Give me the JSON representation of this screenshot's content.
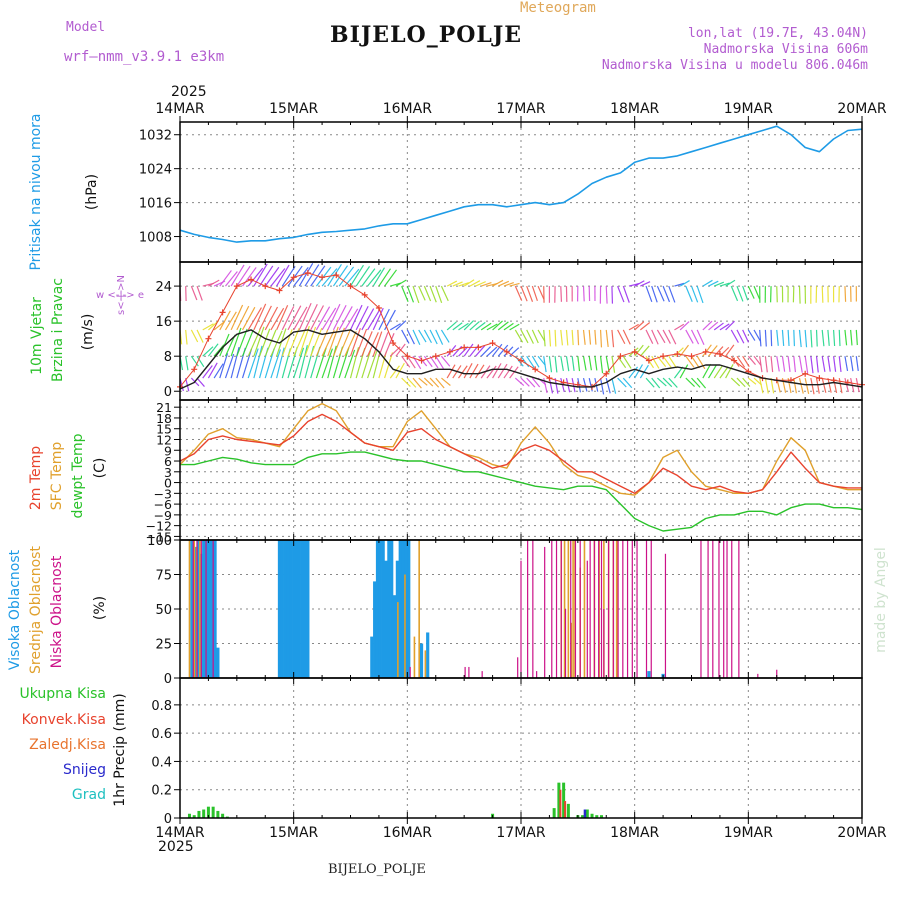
{
  "header": {
    "model_label": "Model",
    "model_name": "wrf–nmm_v3.9.1  e3km",
    "meteogram": "Meteogram",
    "title": "BIJELO_POLJE",
    "lonlat": "lon,lat (19.7E, 43.04N)",
    "altitude": "Nadmorska Visina 606m",
    "model_altitude": "Nadmorska Visina u modelu 806.046m",
    "year_top": "2025",
    "year_bottom": "2025",
    "bottom_name": "BIJELO_POLJE",
    "watermark": "made by Angel"
  },
  "colors": {
    "pressure": "#1e9be6",
    "wind": "#1f1f1f",
    "gust": "#e8432e",
    "temp2m": "#e8432e",
    "sfc": "#e0a02c",
    "dewpt": "#2ac22a",
    "high": "#1e9be6",
    "mid": "#e0a02c",
    "low": "#cc1188",
    "precip_total": "#2ac22a",
    "precip_conv": "#e8432e",
    "precip_frz": "#e8742e",
    "snow": "#2a2acc",
    "hail": "#1ec0c0",
    "dir_label": "#b25cd0"
  },
  "chart_data": {
    "type": "meteogram",
    "x_tick_labels": [
      "14MAR",
      "15MAR",
      "16MAR",
      "17MAR",
      "18MAR",
      "19MAR",
      "20MAR"
    ],
    "x_range_hours": [
      0,
      144
    ],
    "panels": {
      "pressure": {
        "type": "line",
        "label": "Pritisak na nivou mora",
        "unit": "(hPa)",
        "yticks": [
          1008,
          1016,
          1024,
          1032
        ],
        "ylim": [
          1002,
          1035
        ],
        "x": [
          0,
          3,
          6,
          9,
          12,
          15,
          18,
          21,
          24,
          27,
          30,
          33,
          36,
          39,
          42,
          45,
          48,
          51,
          54,
          57,
          60,
          63,
          66,
          69,
          72,
          75,
          78,
          81,
          84,
          87,
          90,
          93,
          96,
          99,
          102,
          105,
          108,
          111,
          114,
          117,
          120,
          123,
          126,
          129,
          132,
          135,
          138,
          141,
          144
        ],
        "values": [
          1009.5,
          1008.5,
          1007.8,
          1007.3,
          1006.7,
          1007,
          1007,
          1007.5,
          1007.8,
          1008.5,
          1009,
          1009.2,
          1009.5,
          1009.8,
          1010.5,
          1011,
          1011,
          1012,
          1013,
          1014,
          1015,
          1015.5,
          1015.5,
          1015,
          1015.5,
          1016,
          1015.5,
          1016,
          1018,
          1020.5,
          1022,
          1023,
          1025.5,
          1026.5,
          1026.5,
          1027,
          1028,
          1029,
          1030,
          1031,
          1032,
          1033,
          1034,
          1032,
          1029,
          1028,
          1031,
          1033,
          1033.3
        ]
      },
      "wind": {
        "type": "line",
        "label_a": "10m Vjetar",
        "label_b": "Brzina i Pravac",
        "unit": "(m/s)",
        "dir_compass": "w  <-|->  e",
        "dir_axis": "s<-|->N",
        "yticks": [
          0,
          8,
          16,
          24
        ],
        "ylim": [
          -2,
          29.5
        ],
        "x": [
          0,
          3,
          6,
          9,
          12,
          15,
          18,
          21,
          24,
          27,
          30,
          33,
          36,
          39,
          42,
          45,
          48,
          51,
          54,
          57,
          60,
          63,
          66,
          69,
          72,
          75,
          78,
          81,
          84,
          87,
          90,
          93,
          96,
          99,
          102,
          105,
          108,
          111,
          114,
          117,
          120,
          123,
          126,
          129,
          132,
          135,
          138,
          141,
          144
        ],
        "speed": [
          0.5,
          2,
          6,
          10,
          13,
          14,
          12,
          11,
          13.5,
          14,
          13,
          13.5,
          14,
          12,
          9,
          5,
          4,
          4,
          5,
          5,
          4,
          4,
          5,
          5,
          4,
          3,
          2,
          1.5,
          1,
          1,
          2,
          4,
          5,
          4,
          5,
          5.5,
          5,
          6,
          6,
          5,
          4,
          3,
          2.5,
          2,
          1.5,
          1.5,
          2,
          1.5,
          1
        ],
        "gust": [
          1,
          5,
          12,
          18,
          24,
          25.5,
          24,
          23,
          26,
          27,
          26,
          26.5,
          24,
          22,
          19,
          11,
          8,
          7,
          8,
          9,
          10,
          10,
          11,
          9,
          7,
          5,
          3,
          2,
          1.5,
          1,
          4,
          8,
          9,
          7,
          8,
          8.5,
          8,
          9,
          8.5,
          7,
          4.5,
          3,
          2.5,
          2.5,
          4,
          3,
          2.5,
          2,
          1.5
        ],
        "barb_levels": [
          3,
          8,
          14,
          24
        ],
        "barb_colors": [
          "#9b2ff0",
          "#3a5cf0",
          "#1eb8e8",
          "#1fd68a",
          "#2ad82a",
          "#9adc28",
          "#e8e02a",
          "#f0a02a",
          "#f05a4a",
          "#e8548c",
          "#d44ee0"
        ]
      },
      "temperature": {
        "type": "line",
        "label_a": "2m Temp",
        "label_b": "SFC Temp",
        "label_c": "dewpt Temp",
        "unit": "(C)",
        "yticks": [
          -15,
          -12,
          -9,
          -6,
          -3,
          0,
          3,
          6,
          9,
          12,
          15,
          18,
          21
        ],
        "ylim": [
          -16,
          23
        ],
        "x": [
          0,
          3,
          6,
          9,
          12,
          15,
          18,
          21,
          24,
          27,
          30,
          33,
          36,
          39,
          42,
          45,
          48,
          51,
          54,
          57,
          60,
          63,
          66,
          69,
          72,
          75,
          78,
          81,
          84,
          87,
          90,
          93,
          96,
          99,
          102,
          105,
          108,
          111,
          114,
          117,
          120,
          123,
          126,
          129,
          132,
          135,
          138,
          141,
          144
        ],
        "t2m": [
          6,
          8,
          12,
          13,
          12,
          11.5,
          11,
          10.5,
          13,
          17,
          19,
          17,
          14,
          11,
          10,
          9,
          14,
          15,
          12,
          10,
          8,
          6,
          4,
          5,
          9,
          10.5,
          9,
          6,
          3,
          3,
          1,
          -1,
          -3,
          0,
          4,
          2,
          -1,
          -2,
          -1,
          -2.5,
          -3,
          -2,
          3,
          8.5,
          4,
          0,
          -1,
          -1.5,
          -1.5
        ],
        "sfc": [
          5,
          9,
          13.5,
          15,
          12.5,
          12,
          11,
          10,
          15,
          20,
          22,
          20,
          14,
          11,
          10,
          10,
          17,
          20,
          15,
          10,
          8,
          7,
          5,
          4,
          11,
          15.5,
          11,
          5,
          2,
          1,
          -1,
          -3,
          -3.5,
          0,
          7,
          9,
          3,
          -1,
          -2,
          -3,
          -3,
          -2,
          6,
          12.5,
          9,
          0,
          -1,
          -2,
          -2
        ],
        "dewpt": [
          5,
          5,
          6,
          7,
          6.5,
          5.5,
          5,
          5,
          5,
          7,
          8,
          8,
          8.5,
          8.5,
          7.5,
          6.5,
          6,
          6,
          5,
          4,
          3,
          3,
          2,
          1,
          0,
          -1,
          -1.5,
          -2,
          -1,
          -1,
          -2,
          -6,
          -10,
          -12,
          -13.5,
          -13,
          -12.5,
          -10,
          -9,
          -9,
          -8,
          -8,
          -9,
          -7,
          -6,
          -6,
          -7,
          -7,
          -7.5
        ]
      },
      "clouds": {
        "type": "bar",
        "label_a": "Visoka Oblacnost",
        "label_b": "Srednja Oblacnost",
        "label_c": "Niska Oblacnost",
        "unit": "(%)",
        "yticks": [
          0,
          25,
          50,
          75,
          100
        ],
        "ylim": [
          0,
          100
        ],
        "high": [
          [
            2.5,
            100
          ],
          [
            3.2,
            95
          ],
          [
            3.8,
            100
          ],
          [
            4.4,
            90
          ],
          [
            5.0,
            100
          ],
          [
            5.6,
            100
          ],
          [
            6.2,
            100
          ],
          [
            6.8,
            100
          ],
          [
            7.4,
            100
          ],
          [
            8.0,
            22
          ],
          [
            21.0,
            100
          ],
          [
            21.6,
            100
          ],
          [
            22.2,
            100
          ],
          [
            22.8,
            100
          ],
          [
            23.4,
            100
          ],
          [
            24.0,
            100
          ],
          [
            24.6,
            100
          ],
          [
            25.2,
            100
          ],
          [
            25.8,
            100
          ],
          [
            26.4,
            100
          ],
          [
            27.0,
            100
          ],
          [
            40.5,
            30
          ],
          [
            41.1,
            70
          ],
          [
            41.7,
            100
          ],
          [
            42.3,
            100
          ],
          [
            42.9,
            100
          ],
          [
            43.5,
            85
          ],
          [
            44.1,
            100
          ],
          [
            44.7,
            100
          ],
          [
            45.3,
            60
          ],
          [
            45.9,
            85
          ],
          [
            46.5,
            100
          ],
          [
            47.1,
            100
          ],
          [
            47.7,
            100
          ],
          [
            48.3,
            100
          ],
          [
            51.0,
            25
          ],
          [
            52.3,
            33
          ],
          [
            99.0,
            5
          ],
          [
            102.0,
            3
          ]
        ],
        "mid": [
          [
            2.0,
            100
          ],
          [
            3.0,
            100
          ],
          [
            3.5,
            95
          ],
          [
            4.2,
            100
          ],
          [
            46.0,
            55
          ],
          [
            47.5,
            75
          ],
          [
            49.5,
            30
          ],
          [
            50.5,
            100
          ],
          [
            51.8,
            20
          ],
          [
            80.5,
            100
          ],
          [
            81.2,
            100
          ],
          [
            82.0,
            100
          ],
          [
            82.6,
            40
          ],
          [
            83.0,
            100
          ],
          [
            83.4,
            100
          ],
          [
            84.5,
            80
          ],
          [
            85.4,
            100
          ],
          [
            87.5,
            100
          ],
          [
            88.5,
            100
          ],
          [
            89.5,
            100
          ],
          [
            90.5,
            100
          ],
          [
            91.5,
            100
          ],
          [
            92.2,
            100
          ]
        ],
        "low": [
          [
            2.8,
            100
          ],
          [
            3.6,
            100
          ],
          [
            4.5,
            100
          ],
          [
            5.5,
            100
          ],
          [
            7.0,
            100
          ],
          [
            48.6,
            8
          ],
          [
            60.2,
            8
          ],
          [
            61.0,
            8
          ],
          [
            63.8,
            5
          ],
          [
            71.3,
            15
          ],
          [
            72.0,
            85
          ],
          [
            73.4,
            100
          ],
          [
            74.5,
            100
          ],
          [
            75.3,
            5
          ],
          [
            77.0,
            95
          ],
          [
            78.5,
            100
          ],
          [
            79.5,
            100
          ],
          [
            80.5,
            100
          ],
          [
            81.4,
            50
          ],
          [
            82.5,
            100
          ],
          [
            83.5,
            100
          ],
          [
            84.5,
            100
          ],
          [
            86.0,
            85
          ],
          [
            86.6,
            100
          ],
          [
            87.5,
            100
          ],
          [
            88.4,
            100
          ],
          [
            89.0,
            100
          ],
          [
            89.5,
            50
          ],
          [
            90.5,
            100
          ],
          [
            91.5,
            100
          ],
          [
            92.5,
            100
          ],
          [
            93.5,
            100
          ],
          [
            94.5,
            100
          ],
          [
            95.5,
            100
          ],
          [
            96.5,
            100
          ],
          [
            98.5,
            100
          ],
          [
            99.5,
            100
          ],
          [
            102.5,
            90
          ],
          [
            110.0,
            100
          ],
          [
            111.5,
            100
          ],
          [
            112.5,
            100
          ],
          [
            113.8,
            100
          ],
          [
            114.8,
            100
          ],
          [
            115.5,
            100
          ],
          [
            116.5,
            100
          ],
          [
            118.0,
            100
          ],
          [
            122.0,
            3
          ],
          [
            126.0,
            6
          ]
        ]
      },
      "precip": {
        "type": "bar",
        "label_total": "Ukupna Kisa",
        "label_conv": "Konvek.Kisa",
        "label_frz": "Zaledj.Kisa",
        "label_snow": "Snijeg",
        "label_hail": "Grad",
        "unit": "1hr Precip (mm)",
        "yticks": [
          0,
          0.2,
          0.4,
          0.6,
          0.8
        ],
        "ylim": [
          0,
          0.99
        ],
        "total": [
          [
            2,
            0.03
          ],
          [
            3,
            0.02
          ],
          [
            4,
            0.05
          ],
          [
            5,
            0.06
          ],
          [
            6,
            0.08
          ],
          [
            7,
            0.08
          ],
          [
            8,
            0.05
          ],
          [
            9,
            0.03
          ],
          [
            10,
            0.01
          ],
          [
            66,
            0.03
          ],
          [
            79,
            0.07
          ],
          [
            80,
            0.25
          ],
          [
            81,
            0.25
          ],
          [
            82,
            0.1
          ],
          [
            84,
            0.02
          ],
          [
            85,
            0.02
          ],
          [
            86,
            0.06
          ],
          [
            87,
            0.03
          ],
          [
            88,
            0.02
          ],
          [
            89,
            0.02
          ]
        ],
        "conv": [
          [
            80,
            0.2
          ],
          [
            81,
            0.12
          ]
        ],
        "frz": [],
        "snow": [
          [
            85.5,
            0.06
          ]
        ],
        "hail": []
      }
    }
  }
}
